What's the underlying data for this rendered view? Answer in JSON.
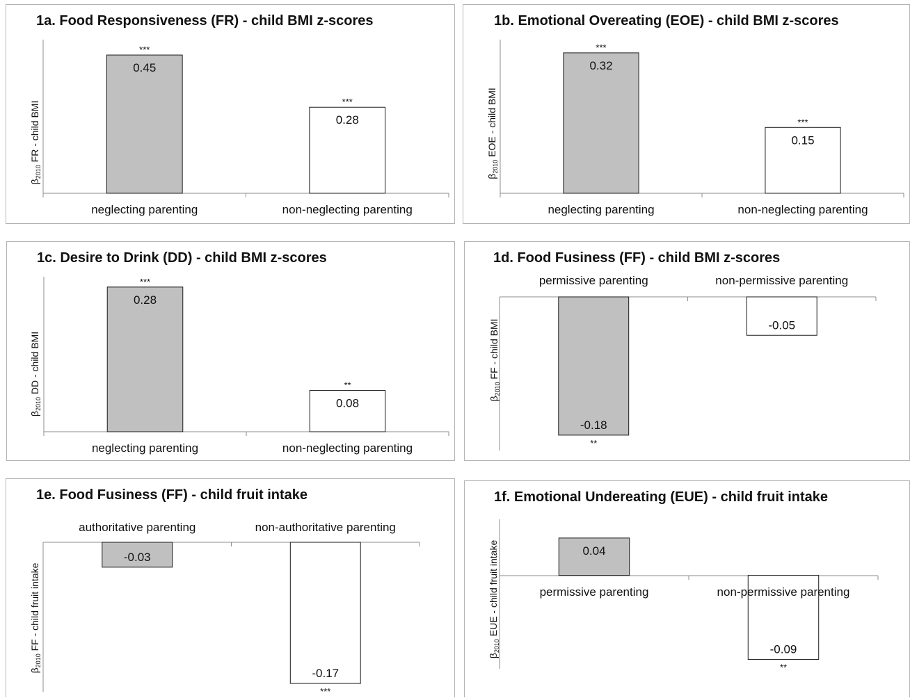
{
  "chart_data": [
    {
      "id": "1a",
      "type": "bar",
      "title": "1a. Food Responsiveness (FR) - child BMI z-scores",
      "ylabel_beta": "β",
      "ylabel_sub": "2010",
      "ylabel_rest": " FR - child BMI",
      "categories": [
        "neglecting parenting",
        "non-neglecting parenting"
      ],
      "values": [
        0.45,
        0.28
      ],
      "value_labels": [
        "0.45",
        "0.28"
      ],
      "significance": [
        "***",
        "***"
      ],
      "ylim": [
        0,
        0.5
      ],
      "colors": [
        "#c0c0c0",
        "#ffffff"
      ]
    },
    {
      "id": "1b",
      "type": "bar",
      "title": "1b. Emotional Overeating  (EOE) - child BMI z-scores",
      "ylabel_beta": "β",
      "ylabel_sub": "2010",
      "ylabel_rest": " EOE - child BMI",
      "categories": [
        "neglecting parenting",
        "non-neglecting parenting"
      ],
      "values": [
        0.32,
        0.15
      ],
      "value_labels": [
        "0.32",
        "0.15"
      ],
      "significance": [
        "***",
        "***"
      ],
      "ylim": [
        0,
        0.35
      ],
      "colors": [
        "#c0c0c0",
        "#ffffff"
      ]
    },
    {
      "id": "1c",
      "type": "bar",
      "title": "1c. Desire to Drink (DD) - child BMI z-scores",
      "ylabel_beta": "β",
      "ylabel_sub": "2010",
      "ylabel_rest": " DD - child BMI",
      "categories": [
        "neglecting parenting",
        "non-neglecting parenting"
      ],
      "values": [
        0.28,
        0.08
      ],
      "value_labels": [
        "0.28",
        "0.08"
      ],
      "significance": [
        "***",
        "**"
      ],
      "ylim": [
        0,
        0.3
      ],
      "colors": [
        "#c0c0c0",
        "#ffffff"
      ]
    },
    {
      "id": "1d",
      "type": "bar",
      "title": "1d. Food Fusiness (FF) - child BMI z-scores",
      "ylabel_beta": "β",
      "ylabel_sub": "2010",
      "ylabel_rest": " FF - child BMI",
      "categories": [
        "permissive parenting",
        "non-permissive parenting"
      ],
      "values": [
        -0.18,
        -0.05
      ],
      "value_labels": [
        "-0.18",
        "-0.05"
      ],
      "significance": [
        "**",
        ""
      ],
      "ylim": [
        -0.2,
        0
      ],
      "colors": [
        "#c0c0c0",
        "#ffffff"
      ]
    },
    {
      "id": "1e",
      "type": "bar",
      "title": "1e. Food Fusiness (FF) - child fruit intake",
      "ylabel_beta": "β",
      "ylabel_sub": "2010",
      "ylabel_rest": " FF - child fruit intake",
      "categories": [
        "authoritative parenting",
        "non-authoritative parenting"
      ],
      "values": [
        -0.03,
        -0.17
      ],
      "value_labels": [
        "-0.03",
        "-0.17"
      ],
      "significance": [
        "",
        "***"
      ],
      "ylim": [
        -0.18,
        0
      ],
      "colors": [
        "#c0c0c0",
        "#ffffff"
      ]
    },
    {
      "id": "1f",
      "type": "bar",
      "title": "1f. Emotional Undereating (EUE) - child fruit intake",
      "ylabel_beta": "β",
      "ylabel_sub": "2010",
      "ylabel_rest": " EUE - child fruit intake",
      "categories": [
        "permissive parenting",
        "non-permissive parenting"
      ],
      "values": [
        0.04,
        -0.09
      ],
      "value_labels": [
        "0.04",
        "-0.09"
      ],
      "significance": [
        "",
        "**"
      ],
      "ylim": [
        -0.1,
        0.06
      ],
      "colors": [
        "#c0c0c0",
        "#ffffff"
      ]
    }
  ]
}
